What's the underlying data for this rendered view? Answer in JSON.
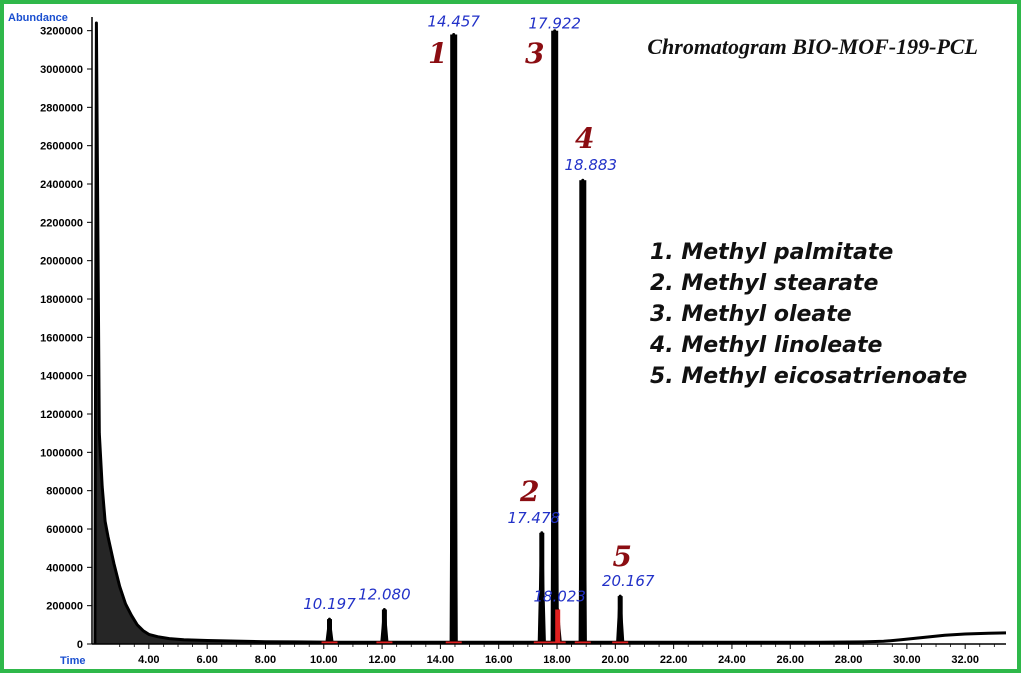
{
  "chart_data": {
    "type": "line",
    "title": "Chromatogram BIO-MOF-199-PCL",
    "xlabel": "Time",
    "ylabel": "Abundance",
    "xlim": [
      2.05,
      33.4
    ],
    "ylim": [
      0,
      3240000
    ],
    "x_ticks": [
      "4.00",
      "6.00",
      "8.00",
      "10.00",
      "12.00",
      "14.00",
      "16.00",
      "18.00",
      "20.00",
      "22.00",
      "24.00",
      "26.00",
      "28.00",
      "30.00",
      "32.00"
    ],
    "y_ticks": [
      "0",
      "200000",
      "400000",
      "600000",
      "800000",
      "1000000",
      "1200000",
      "1400000",
      "1600000",
      "1800000",
      "2000000",
      "2200000",
      "2400000",
      "2600000",
      "2800000",
      "3000000",
      "3200000"
    ],
    "peaks": [
      {
        "rt": 10.197,
        "label": "10.197",
        "abundance": 130000,
        "number": ""
      },
      {
        "rt": 12.08,
        "label": "12.080",
        "abundance": 180000,
        "number": ""
      },
      {
        "rt": 14.457,
        "label": "14.457",
        "abundance": 3180000,
        "number": "1"
      },
      {
        "rt": 17.478,
        "label": "17.478",
        "abundance": 580000,
        "number": "2"
      },
      {
        "rt": 17.922,
        "label": "17.922",
        "abundance": 3200000,
        "number": "3"
      },
      {
        "rt": 18.023,
        "label": "18.023",
        "abundance": 180000,
        "number": ""
      },
      {
        "rt": 18.883,
        "label": "18.883",
        "abundance": 2420000,
        "number": "4"
      },
      {
        "rt": 20.167,
        "label": "20.167",
        "abundance": 250000,
        "number": "5"
      }
    ],
    "legend_entries": [
      "1.  Methyl palmitate",
      "2.  Methyl stearate",
      "3.  Methyl oleate",
      "4.  Methyl linoleate",
      "5.  Methyl eicosatrienoate"
    ],
    "solvent_trace": [
      [
        2.15,
        0
      ],
      [
        2.2,
        3240000
      ],
      [
        2.3,
        1100000
      ],
      [
        2.4,
        820000
      ],
      [
        2.5,
        640000
      ],
      [
        2.6,
        560000
      ],
      [
        2.8,
        420000
      ],
      [
        3.0,
        300000
      ],
      [
        3.2,
        210000
      ],
      [
        3.4,
        150000
      ],
      [
        3.6,
        100000
      ],
      [
        3.8,
        70000
      ],
      [
        4.0,
        50000
      ],
      [
        4.3,
        38000
      ],
      [
        4.7,
        28000
      ],
      [
        5.2,
        22000
      ],
      [
        6.0,
        18000
      ],
      [
        7.0,
        15000
      ],
      [
        8.0,
        12000
      ],
      [
        9.0,
        11000
      ],
      [
        10.0,
        10000
      ]
    ],
    "baseline_tail": [
      [
        27.0,
        9000
      ],
      [
        28.5,
        11000
      ],
      [
        29.2,
        14000
      ],
      [
        29.8,
        22000
      ],
      [
        30.3,
        30000
      ],
      [
        30.8,
        38000
      ],
      [
        31.3,
        46000
      ],
      [
        32.0,
        52000
      ],
      [
        32.8,
        56000
      ],
      [
        33.4,
        58000
      ]
    ],
    "colors": {
      "frame": "#2fb84a",
      "trace": "#000000",
      "peak_label": "#2231c8",
      "peak_number": "#8b0d12",
      "axis_label": "#1a4fd0",
      "integration_marks": "#e02020"
    }
  }
}
